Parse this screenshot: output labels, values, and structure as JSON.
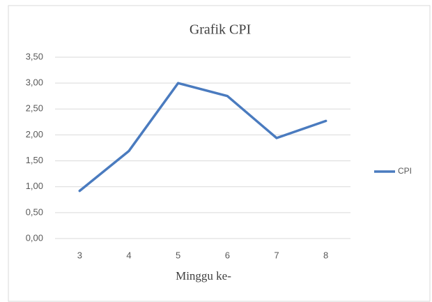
{
  "chart_data": {
    "type": "line",
    "title": "Grafik CPI",
    "x_label": "Minggu ke-",
    "categories": [
      "3",
      "4",
      "5",
      "6",
      "7",
      "8"
    ],
    "series": [
      {
        "name": "CPI",
        "color": "#4a7bbf",
        "values": [
          0.92,
          1.69,
          3.0,
          2.75,
          1.94,
          2.27
        ]
      }
    ],
    "ylim": [
      0,
      3.5
    ],
    "yticks": [
      {
        "value": 0,
        "label": "0,00"
      },
      {
        "value": 0.5,
        "label": "0,50"
      },
      {
        "value": 1,
        "label": "1,00"
      },
      {
        "value": 1.5,
        "label": "1,50"
      },
      {
        "value": 2,
        "label": "2,00"
      },
      {
        "value": 2.5,
        "label": "2,50"
      },
      {
        "value": 3,
        "label": "3,00"
      },
      {
        "value": 3.5,
        "label": "3,50"
      }
    ],
    "grid": true,
    "legend": "right"
  }
}
